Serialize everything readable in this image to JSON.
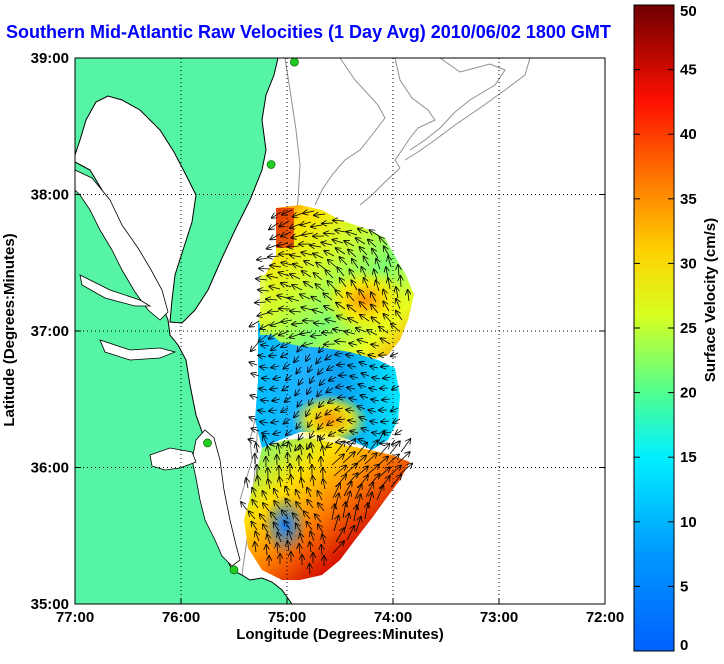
{
  "title": "Southern Mid-Atlantic Raw Velocities (1 Day Avg) 2010/06/02 1800 GMT",
  "map": {
    "xlabel": "Longitude (Degrees:Minutes)",
    "ylabel": "Latitude (Degrees:Minutes)",
    "lon_ticks": [
      {
        "value": -77,
        "label": "77:00"
      },
      {
        "value": -76,
        "label": "76:00"
      },
      {
        "value": -75,
        "label": "75:00"
      },
      {
        "value": -74,
        "label": "74:00"
      },
      {
        "value": -73,
        "label": "73:00"
      },
      {
        "value": -72,
        "label": "72:00"
      }
    ],
    "lat_ticks": [
      {
        "value": 35,
        "label": "35:00"
      },
      {
        "value": 36,
        "label": "36:00"
      },
      {
        "value": 37,
        "label": "37:00"
      },
      {
        "value": 38,
        "label": "38:00"
      },
      {
        "value": 39,
        "label": "39:00"
      }
    ],
    "lon_range": [
      -77,
      -72
    ],
    "lat_range": [
      35,
      39
    ],
    "grid": "dotted",
    "land_color": "#55f5a5",
    "coast_color": "#000000",
    "isobath_color": "#909090",
    "arrow_color": "#000000",
    "station_color": "#22cc22",
    "stations": [
      {
        "lon": -74.93,
        "lat": 38.97
      },
      {
        "lon": -75.15,
        "lat": 38.22
      },
      {
        "lon": -75.75,
        "lat": 36.18
      },
      {
        "lon": -75.5,
        "lat": 35.25
      }
    ]
  },
  "colorbar": {
    "label": "Surface Velocity (cm/s)",
    "ticks": [
      {
        "value": 0,
        "label": "0"
      },
      {
        "value": 5,
        "label": "5"
      },
      {
        "value": 10,
        "label": "10"
      },
      {
        "value": 15,
        "label": "15"
      },
      {
        "value": 20,
        "label": "20"
      },
      {
        "value": 25,
        "label": "25"
      },
      {
        "value": 30,
        "label": "30"
      },
      {
        "value": 35,
        "label": "35"
      },
      {
        "value": 40,
        "label": "40"
      },
      {
        "value": 45,
        "label": "45"
      },
      {
        "value": 50,
        "label": "50"
      }
    ],
    "range": [
      0,
      50
    ],
    "colormap": "jet"
  }
}
